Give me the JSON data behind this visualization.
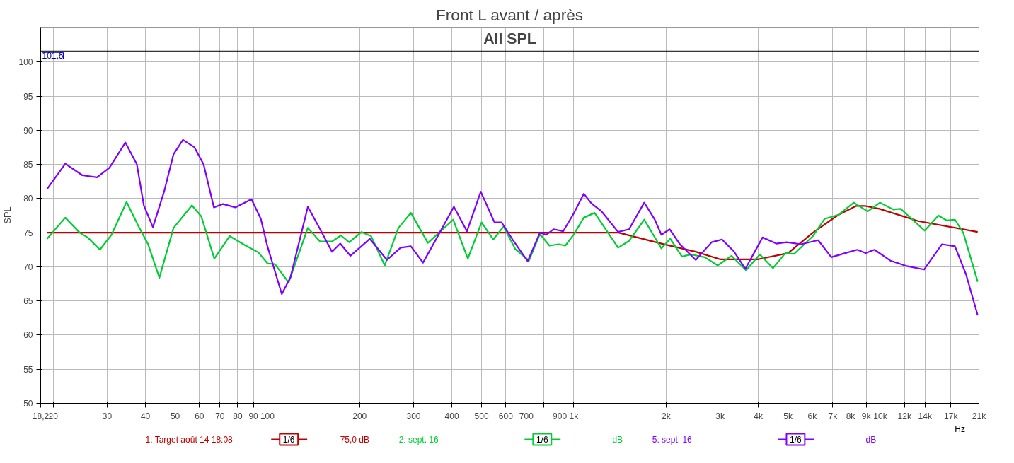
{
  "chart_data": {
    "type": "line",
    "title": "Front L avant / après",
    "ylabel": "SPL",
    "log": "x",
    "grid": true,
    "legend": "bottom",
    "annotations": [
      "All SPL",
      "1/6",
      "75,0 dB",
      "1/6",
      "dB",
      "1/6",
      "dB"
    ],
    "xlim": [
      18.2,
      21000
    ],
    "ylim": [
      50,
      105.1
    ],
    "xticks": [
      {
        "value": 18.2,
        "label": "18,2"
      },
      20,
      30,
      40,
      50,
      60,
      70,
      80,
      90,
      100,
      200,
      300,
      400,
      500,
      600,
      700,
      {
        "value": 800,
        "label": null
      },
      900,
      {
        "value": 1000,
        "label": "1k"
      },
      {
        "value": 2000,
        "label": "2k"
      },
      {
        "value": 3000,
        "label": "3k"
      },
      {
        "value": 4000,
        "label": "4k"
      },
      {
        "value": 5000,
        "label": "5k"
      },
      {
        "value": 6000,
        "label": "6k"
      },
      {
        "value": 7000,
        "label": "7k"
      },
      {
        "value": 8000,
        "label": "8k"
      },
      {
        "value": 9000,
        "label": "9k"
      },
      {
        "value": 10000,
        "label": "10k"
      },
      {
        "value": 12000,
        "label": "12k"
      },
      {
        "value": 14000,
        "label": "14k"
      },
      {
        "value": 17000,
        "label": "17k"
      },
      {
        "value": 21000,
        "label": "21k"
      }
    ],
    "xlabel": "Hz",
    "yticks": [
      50,
      55,
      60,
      65,
      70,
      75,
      80,
      85,
      90,
      95,
      100
    ],
    "ref_lines": [
      {
        "axis": "y",
        "value": 101.6,
        "label": "101,6",
        "color": "#000000"
      }
    ],
    "series": [
      {
        "name": "1: Target août 14 18:08",
        "color": "#c00000",
        "x": [
          19.1,
          1400,
          1931,
          2500,
          3000,
          4000,
          5000,
          6030,
          7295,
          8330,
          8961,
          9930,
          13300,
          20800
        ],
        "values": [
          75,
          75,
          73.4,
          72.2,
          71.1,
          71.1,
          72,
          75,
          77.6,
          78.9,
          78.9,
          78.5,
          76.7,
          75.1
        ]
      },
      {
        "name": "2: sept. 16",
        "color": "#00cc33",
        "x": [
          19.1,
          21.9,
          24.4,
          25.9,
          28.4,
          31,
          34.7,
          37.9,
          40.8,
          44.4,
          49.4,
          56.7,
          60.8,
          67.1,
          75.3,
          84.2,
          93.5,
          100,
          105.8,
          117.3,
          135.5,
          148.6,
          162.5,
          173.7,
          184.8,
          202.9,
          218,
          241.5,
          267.7,
          294,
          334,
          404,
          451,
          500,
          546,
          590,
          644,
          714,
          775,
          833,
          891,
          938,
          1002,
          1078,
          1169,
          1395,
          1515,
          1697,
          1931,
          2065,
          2253,
          2410,
          2674,
          2950,
          3272,
          3648,
          4046,
          4467,
          4900,
          5240,
          6030,
          6577,
          7295,
          8200,
          9100,
          9980,
          11010,
          11650,
          13960,
          15480,
          16460,
          17530,
          18660,
          20800
        ],
        "values": [
          74.1,
          77.2,
          75,
          74.3,
          72.5,
          74.7,
          79.5,
          76,
          73.3,
          68.4,
          75.7,
          79,
          77.4,
          71.2,
          74.5,
          73.2,
          72.1,
          70.5,
          70.4,
          67.7,
          75.7,
          73.7,
          73.7,
          74.6,
          73.6,
          75.1,
          74.5,
          70.2,
          75.7,
          77.9,
          73.5,
          76.9,
          71.2,
          76.5,
          74,
          75.9,
          72.6,
          70.9,
          74.8,
          73.1,
          73.3,
          73.1,
          74.8,
          77.2,
          77.9,
          72.8,
          73.8,
          76.9,
          72.7,
          74.1,
          71.5,
          71.8,
          71.4,
          70.2,
          71.6,
          69.5,
          71.8,
          69.8,
          72,
          71.9,
          74.5,
          77,
          77.6,
          79.4,
          78.1,
          79.4,
          78.4,
          78.5,
          75.3,
          77.5,
          76.8,
          76.9,
          75,
          67.8
        ]
      },
      {
        "name": "5: sept. 16",
        "color": "#7f00ff",
        "x": [
          19.1,
          21.9,
          24.9,
          27.8,
          30.5,
          34.4,
          37.5,
          39.5,
          42.3,
          46,
          49.4,
          53,
          57.8,
          61.9,
          66.9,
          71.6,
          78.6,
          88.7,
          95.2,
          100,
          111.4,
          119,
          135.5,
          148.6,
          162.5,
          172.8,
          186.6,
          215.8,
          245.6,
          272,
          294,
          322,
          365,
          406,
          448,
          497,
          551,
          581,
          631,
          707,
          775,
          812,
          859,
          923,
          1002,
          1078,
          1141,
          1233,
          1395,
          1515,
          1697,
          1833,
          1931,
          2056,
          2220,
          2500,
          2818,
          3044,
          3323,
          3630,
          4130,
          4581,
          4947,
          5513,
          6273,
          6922,
          7674,
          8420,
          8961,
          9580,
          10790,
          12210,
          13900,
          15890,
          17530,
          19050,
          20800
        ],
        "values": [
          81.4,
          85.1,
          83.4,
          83.1,
          84.5,
          88.2,
          85,
          79,
          75.8,
          81,
          86.5,
          88.6,
          87.5,
          85,
          78.7,
          79.2,
          78.7,
          79.9,
          77,
          73,
          66,
          68.5,
          78.8,
          75.5,
          72.2,
          73.4,
          71.6,
          74.1,
          71,
          72.8,
          73,
          70.6,
          75,
          78.8,
          75.2,
          81,
          76.5,
          76.5,
          74,
          70.8,
          75,
          74.7,
          75.5,
          75.2,
          77.9,
          80.7,
          79.3,
          78.1,
          75.1,
          75.5,
          79.4,
          77,
          74.7,
          75.5,
          73.3,
          71,
          73.6,
          74,
          72.3,
          69.7,
          74.3,
          73.4,
          73.6,
          73.3,
          73.9,
          71.4,
          72,
          72.5,
          72,
          72.5,
          70.9,
          70.1,
          69.6,
          73.3,
          73,
          68.9,
          62.9
        ]
      }
    ]
  }
}
